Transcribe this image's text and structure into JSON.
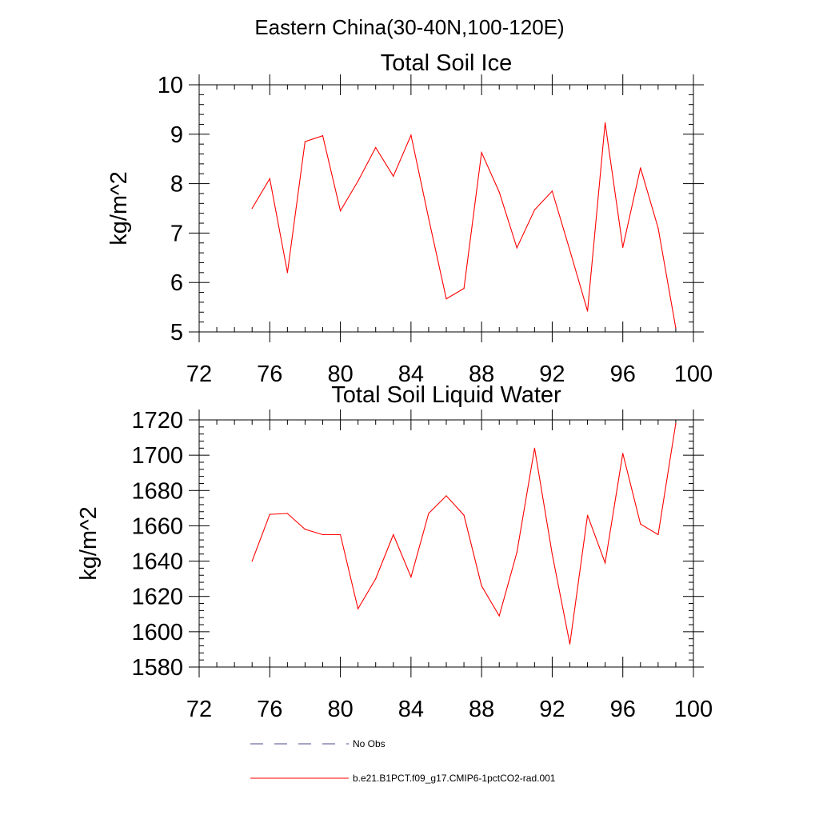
{
  "figure": {
    "title": "Eastern China(30-40N,100-120E)"
  },
  "colors": {
    "series": "#ff0000",
    "obs": "#4a4a8a",
    "axis": "#000000"
  },
  "chart_data": [
    {
      "type": "line",
      "title": "Total Soil Ice",
      "xlabel": "",
      "ylabel": "kg/m^2",
      "xlim": [
        72,
        100
      ],
      "ylim": [
        5,
        10
      ],
      "xticks": [
        72,
        76,
        80,
        84,
        88,
        92,
        96,
        100
      ],
      "yticks": [
        5,
        6,
        7,
        8,
        9,
        10
      ],
      "grid": false,
      "series": [
        {
          "name": "b.e21.B1PCT.f09_g17.CMIP6-1pctCO2-rad.001",
          "x": [
            75,
            76,
            77,
            78,
            79,
            80,
            81,
            82,
            83,
            84,
            85,
            86,
            87,
            88,
            89,
            90,
            91,
            92,
            93,
            94,
            95,
            96,
            97,
            98,
            99
          ],
          "y": [
            7.5,
            8.1,
            6.2,
            8.85,
            8.97,
            7.45,
            8.05,
            8.73,
            8.15,
            8.98,
            7.3,
            5.67,
            5.88,
            8.63,
            7.83,
            6.7,
            7.47,
            7.85,
            6.65,
            5.42,
            9.23,
            6.71,
            8.32,
            7.1,
            5.08
          ]
        }
      ]
    },
    {
      "type": "line",
      "title": "Total Soil Liquid Water",
      "xlabel": "",
      "ylabel": "kg/m^2",
      "xlim": [
        72,
        100
      ],
      "ylim": [
        1580,
        1720
      ],
      "xticks": [
        72,
        76,
        80,
        84,
        88,
        92,
        96,
        100
      ],
      "yticks": [
        1580,
        1600,
        1620,
        1640,
        1660,
        1680,
        1700,
        1720
      ],
      "grid": false,
      "series": [
        {
          "name": "b.e21.B1PCT.f09_g17.CMIP6-1pctCO2-rad.001",
          "x": [
            75,
            76,
            77,
            78,
            79,
            80,
            81,
            82,
            83,
            84,
            85,
            86,
            87,
            88,
            89,
            90,
            91,
            92,
            93,
            94,
            95,
            96,
            97,
            98,
            99
          ],
          "y": [
            1640,
            1666.5,
            1667,
            1658,
            1655,
            1655,
            1613,
            1630,
            1655,
            1631,
            1667,
            1677,
            1666,
            1626,
            1609,
            1645,
            1704,
            1644,
            1593,
            1666,
            1639,
            1701,
            1661,
            1655,
            1718
          ]
        }
      ]
    }
  ],
  "legend": {
    "placement": "bottom",
    "items": [
      {
        "label": "No Obs",
        "style": "dashed",
        "color": "#4a4a8a"
      },
      {
        "label": "b.e21.B1PCT.f09_g17.CMIP6-1pctCO2-rad.001",
        "style": "solid",
        "color": "#ff0000"
      }
    ]
  }
}
